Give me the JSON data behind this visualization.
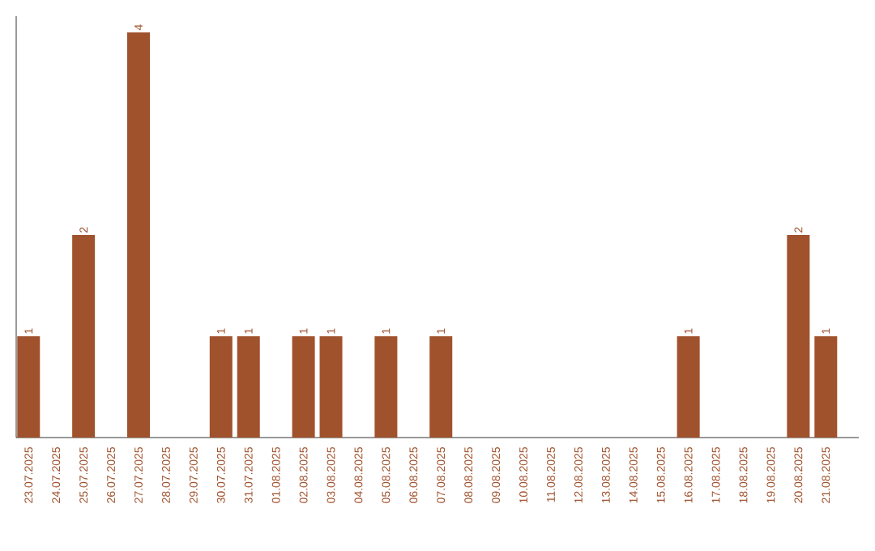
{
  "chart_data": {
    "type": "bar",
    "categories": [
      "23.07.2025",
      "24.07.2025",
      "25.07.2025",
      "26.07.2025",
      "27.07.2025",
      "28.07.2025",
      "29.07.2025",
      "30.07.2025",
      "31.07.2025",
      "01.08.2025",
      "02.08.2025",
      "03.08.2025",
      "04.08.2025",
      "05.08.2025",
      "06.08.2025",
      "07.08.2025",
      "08.08.2025",
      "09.08.2025",
      "10.08.2025",
      "11.08.2025",
      "12.08.2025",
      "13.08.2025",
      "14.08.2025",
      "15.08.2025",
      "16.08.2025",
      "17.08.2025",
      "18.08.2025",
      "19.08.2025",
      "20.08.2025",
      "21.08.2025"
    ],
    "values": [
      1,
      0,
      2,
      0,
      4,
      0,
      0,
      1,
      1,
      0,
      1,
      1,
      0,
      1,
      0,
      1,
      0,
      0,
      0,
      0,
      0,
      0,
      0,
      0,
      1,
      0,
      0,
      0,
      2,
      1
    ],
    "value_labels": [
      "1",
      null,
      "2",
      null,
      "4",
      null,
      null,
      "1",
      "1",
      null,
      "1",
      "1",
      null,
      "1",
      null,
      "1",
      null,
      null,
      null,
      null,
      null,
      null,
      null,
      null,
      "1",
      null,
      null,
      null,
      "2",
      "1"
    ],
    "color": "#a0522d"
  }
}
